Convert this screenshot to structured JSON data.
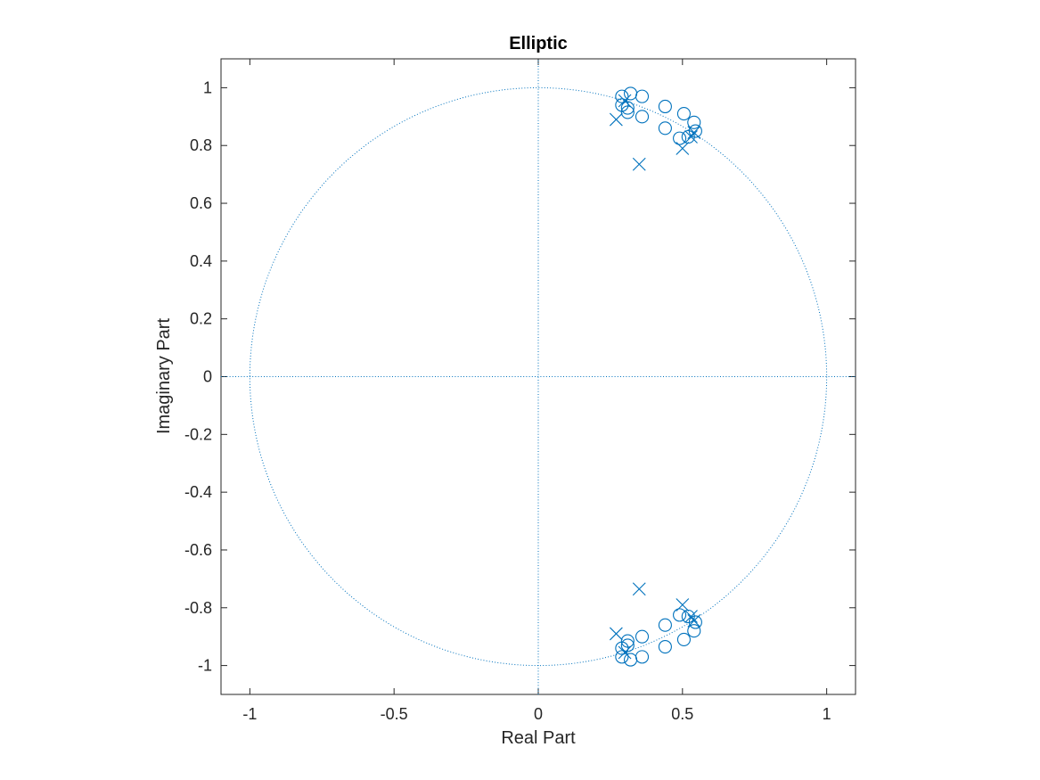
{
  "chart_data": {
    "type": "scatter",
    "title": "Elliptic",
    "xlabel": "Real Part",
    "ylabel": "Imaginary Part",
    "xlim": [
      -1.1,
      1.1
    ],
    "ylim": [
      -1.1,
      1.1
    ],
    "xticks": [
      "-1",
      "-0.5",
      "0",
      "0.5",
      "1"
    ],
    "xtick_values": [
      -1,
      -0.5,
      0,
      0.5,
      1
    ],
    "yticks": [
      "-1",
      "-0.8",
      "-0.6",
      "-0.4",
      "-0.2",
      "0",
      "0.2",
      "0.4",
      "0.6",
      "0.8",
      "1"
    ],
    "ytick_values": [
      -1,
      -0.8,
      -0.6,
      -0.4,
      -0.2,
      0,
      0.2,
      0.4,
      0.6,
      0.8,
      1
    ],
    "grid": false,
    "legend": "none",
    "color": "#0072BD",
    "unit_circle": true,
    "zeros": [
      {
        "x": 0.29,
        "y": 0.97
      },
      {
        "x": 0.32,
        "y": 0.98
      },
      {
        "x": 0.36,
        "y": 0.97
      },
      {
        "x": 0.29,
        "y": 0.94
      },
      {
        "x": 0.31,
        "y": 0.93
      },
      {
        "x": 0.31,
        "y": 0.915
      },
      {
        "x": 0.36,
        "y": 0.9
      },
      {
        "x": 0.44,
        "y": 0.935
      },
      {
        "x": 0.44,
        "y": 0.86
      },
      {
        "x": 0.505,
        "y": 0.91
      },
      {
        "x": 0.54,
        "y": 0.88
      },
      {
        "x": 0.545,
        "y": 0.85
      },
      {
        "x": 0.49,
        "y": 0.825
      },
      {
        "x": 0.52,
        "y": 0.83
      },
      {
        "x": 0.29,
        "y": -0.97
      },
      {
        "x": 0.32,
        "y": -0.98
      },
      {
        "x": 0.36,
        "y": -0.97
      },
      {
        "x": 0.29,
        "y": -0.94
      },
      {
        "x": 0.31,
        "y": -0.93
      },
      {
        "x": 0.31,
        "y": -0.915
      },
      {
        "x": 0.36,
        "y": -0.9
      },
      {
        "x": 0.44,
        "y": -0.935
      },
      {
        "x": 0.44,
        "y": -0.86
      },
      {
        "x": 0.505,
        "y": -0.91
      },
      {
        "x": 0.54,
        "y": -0.88
      },
      {
        "x": 0.545,
        "y": -0.85
      },
      {
        "x": 0.49,
        "y": -0.825
      },
      {
        "x": 0.52,
        "y": -0.83
      }
    ],
    "poles": [
      {
        "x": 0.27,
        "y": 0.89
      },
      {
        "x": 0.3,
        "y": 0.955
      },
      {
        "x": 0.35,
        "y": 0.735
      },
      {
        "x": 0.5,
        "y": 0.79
      },
      {
        "x": 0.53,
        "y": 0.83
      },
      {
        "x": 0.54,
        "y": 0.845
      },
      {
        "x": 0.27,
        "y": -0.89
      },
      {
        "x": 0.3,
        "y": -0.955
      },
      {
        "x": 0.35,
        "y": -0.735
      },
      {
        "x": 0.5,
        "y": -0.79
      },
      {
        "x": 0.53,
        "y": -0.83
      },
      {
        "x": 0.54,
        "y": -0.845
      }
    ]
  }
}
